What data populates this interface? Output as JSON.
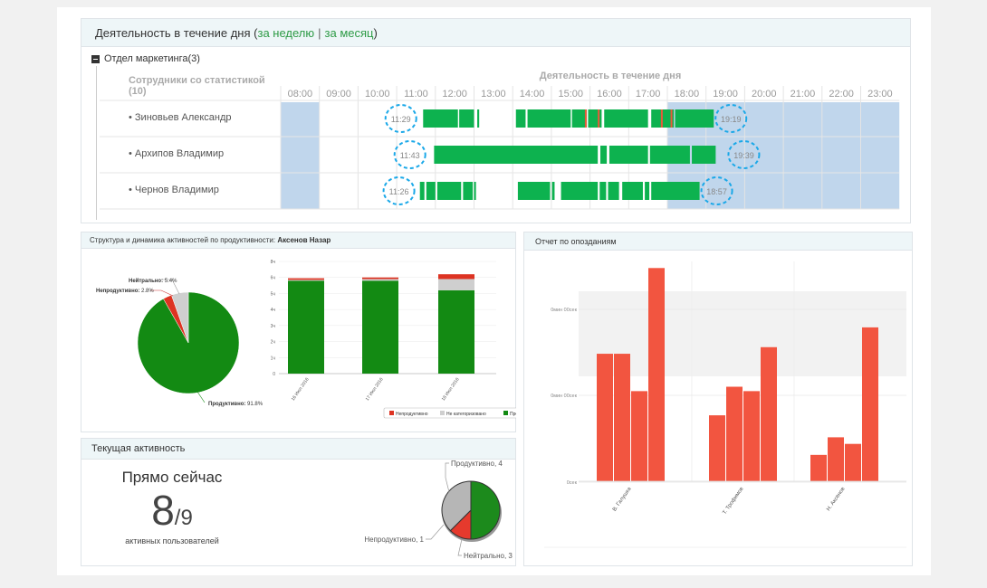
{
  "activity": {
    "title": "Деятельность в течение дня",
    "link_week": "за неделю",
    "link_month": "за месяц",
    "department": "Отдел маркетинга(3)",
    "staff_header": "Сотрудники со статистикой (10)",
    "chart_header": "Деятельность в течение дня",
    "hours": [
      "08:00",
      "09:00",
      "10:00",
      "11:00",
      "12:00",
      "13:00",
      "14:00",
      "15:00",
      "16:00",
      "17:00",
      "18:00",
      "19:00",
      "20:00",
      "21:00",
      "22:00",
      "23:00"
    ],
    "employees": [
      {
        "name": "Зиновьев Александр",
        "start": "11:29",
        "end": "19:19"
      },
      {
        "name": "Архипов Владимир",
        "start": "11:43",
        "end": "19:39"
      },
      {
        "name": "Чернов Владимир",
        "start": "11:26",
        "end": "18:57"
      }
    ]
  },
  "productivity": {
    "title": "Структура и динамика активностей по продуктивности: ",
    "person": "Аксенов Назар",
    "pie_labels": {
      "neutral": "Нейтрально:",
      "neutral_val": "5.4%",
      "unproductive": "Непродуктивно:",
      "unproductive_val": "2.8%",
      "productive": "Продуктивно:",
      "productive_val": "91.8%"
    },
    "legend": [
      "Непродуктивно",
      "Не категоризовано",
      "Продуктивно"
    ],
    "colors": {
      "productive": "#138a13",
      "neutral": "#cfcfcf",
      "unproductive": "#dd3322"
    },
    "chart_data": {
      "type": "bar",
      "stacked": true,
      "categories": [
        "16 Июл 2016",
        "17 Июл 2016",
        "18 Июл 2016"
      ],
      "yticks": [
        "0",
        "1ч",
        "2ч",
        "3ч",
        "4ч",
        "5ч",
        "6ч",
        "8ч"
      ],
      "ylim": [
        0,
        7
      ],
      "series": [
        {
          "name": "Продуктивно",
          "values": [
            5.8,
            5.8,
            5.2
          ]
        },
        {
          "name": "Не категоризовано",
          "values": [
            0.05,
            0.1,
            0.7
          ]
        },
        {
          "name": "Непродуктивно",
          "values": [
            0.1,
            0.1,
            0.3
          ]
        }
      ]
    }
  },
  "current": {
    "title": "Текущая активность",
    "now": "Прямо сейчас",
    "count": "8",
    "total": "/9",
    "caption": "активных пользователей",
    "labels": [
      "Продуктивно, 4",
      "Непродуктивно, 1",
      "Нейтрально, 3"
    ],
    "chart_data": {
      "type": "pie",
      "categories": [
        "Продуктивно",
        "Непродуктивно",
        "Нейтрально"
      ],
      "values": [
        4,
        1,
        3
      ]
    }
  },
  "lateness": {
    "title": "Отчет по опозданиям",
    "yticks": [
      "0мин 00сек",
      "0мин 00сек",
      "0сек"
    ],
    "bar_color": "#f25540",
    "chart_data": {
      "type": "bar",
      "categories": [
        "В. Галушка",
        "Т. Трофимов",
        "Н. Аксенов"
      ],
      "series_values": [
        [
          0.58,
          0.58,
          0.41,
          0.97
        ],
        [
          0.3,
          0.43,
          0.41,
          0.61
        ],
        [
          0.12,
          0.2,
          0.17,
          0.7
        ]
      ]
    }
  }
}
